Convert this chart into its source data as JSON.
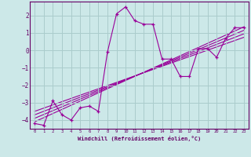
{
  "xlabel": "Windchill (Refroidissement éolien,°C)",
  "background_color": "#cce8e8",
  "line_color": "#990099",
  "grid_color": "#aacccc",
  "xlim": [
    -0.5,
    23.5
  ],
  "ylim": [
    -4.5,
    2.8
  ],
  "yticks": [
    -4,
    -3,
    -2,
    -1,
    0,
    1,
    2
  ],
  "xticks": [
    0,
    1,
    2,
    3,
    4,
    5,
    6,
    7,
    8,
    9,
    10,
    11,
    12,
    13,
    14,
    15,
    16,
    17,
    18,
    19,
    20,
    21,
    22,
    23
  ],
  "scatter_x": [
    0,
    1,
    2,
    3,
    4,
    5,
    6,
    7,
    8,
    9,
    10,
    11,
    12,
    13,
    14,
    15,
    16,
    17,
    18,
    19,
    20,
    21,
    22,
    23
  ],
  "scatter_y": [
    -4.2,
    -4.3,
    -2.9,
    -3.7,
    -4.0,
    -3.3,
    -3.2,
    -3.5,
    -0.1,
    2.1,
    2.5,
    1.7,
    1.5,
    1.5,
    -0.5,
    -0.5,
    -1.5,
    -1.5,
    0.1,
    0.1,
    -0.4,
    0.7,
    1.3,
    1.3
  ],
  "regression_lines": [
    {
      "x": [
        0,
        23
      ],
      "y": [
        -4.1,
        1.35
      ]
    },
    {
      "x": [
        0,
        23
      ],
      "y": [
        -3.9,
        1.15
      ]
    },
    {
      "x": [
        0,
        23
      ],
      "y": [
        -3.7,
        0.95
      ]
    },
    {
      "x": [
        0,
        23
      ],
      "y": [
        -3.5,
        0.75
      ]
    }
  ]
}
